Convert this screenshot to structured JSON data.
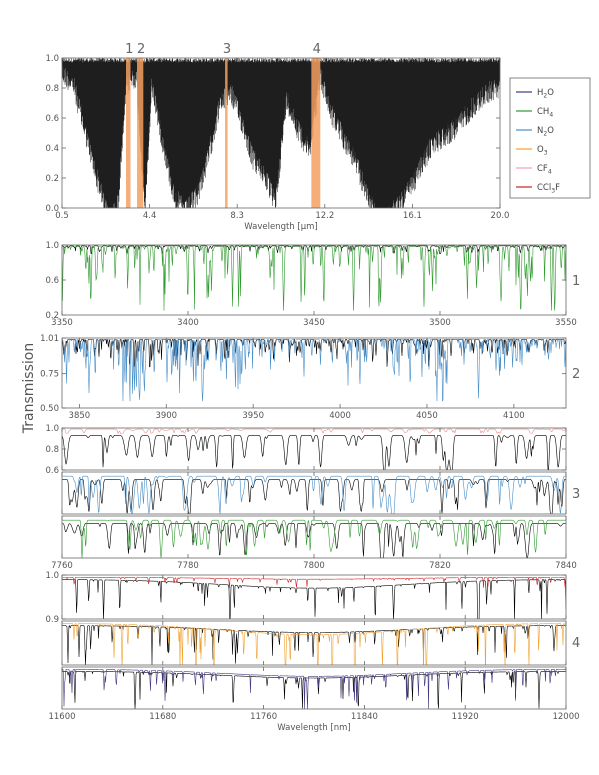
{
  "figure": {
    "ylabel": "Transmission"
  },
  "chart_data": [
    {
      "type": "line",
      "panel": "overview",
      "xlabel": "Wavelength [μm]",
      "xlim": [
        0.5,
        20.0
      ],
      "xticks": [
        "0.5",
        "4.4",
        "8.3",
        "12.2",
        "16.1",
        "20.0"
      ],
      "ylim": [
        0.0,
        1.0
      ],
      "yticks": [
        "0.0",
        "0.2",
        "0.4",
        "0.6",
        "0.8",
        "1.0"
      ],
      "highlight_bands": [
        {
          "label": "1",
          "x": [
            3.35,
            3.55
          ]
        },
        {
          "label": "2",
          "x": [
            3.84,
            4.12
          ]
        },
        {
          "label": "3",
          "x": [
            7.76,
            7.84
          ]
        },
        {
          "label": "4",
          "x": [
            11.6,
            12.0
          ]
        }
      ],
      "series": [
        {
          "color": "#000000",
          "x": [
            0.5,
            1.0,
            1.5,
            2.0,
            2.5,
            2.7,
            3.0,
            3.35,
            3.5,
            3.8,
            4.2,
            4.5,
            5.0,
            5.5,
            6.0,
            6.5,
            7.0,
            7.5,
            8.0,
            8.5,
            9.0,
            9.5,
            10.0,
            10.5,
            11.0,
            11.5,
            12.0,
            12.5,
            13.0,
            13.5,
            14.0,
            14.5,
            15.0,
            15.5,
            16.0,
            16.5,
            17.0,
            17.5,
            18.0,
            18.5,
            19.0,
            19.5,
            20.0
          ],
          "y": [
            0.97,
            0.9,
            0.6,
            0.3,
            0.05,
            0.0,
            0.1,
            0.85,
            0.92,
            0.95,
            0.05,
            0.9,
            0.5,
            0.15,
            0.05,
            0.15,
            0.4,
            0.75,
            0.85,
            0.65,
            0.4,
            0.3,
            0.1,
            0.8,
            0.6,
            0.45,
            0.95,
            0.7,
            0.55,
            0.4,
            0.2,
            0.0,
            0.0,
            0.1,
            0.2,
            0.35,
            0.5,
            0.55,
            0.6,
            0.7,
            0.78,
            0.85,
            0.88
          ]
        }
      ]
    },
    {
      "type": "line",
      "panel": "1",
      "xlim": [
        3350,
        3550
      ],
      "xticks": [
        "3350",
        "3400",
        "3450",
        "3500",
        "3550"
      ],
      "ylim": [
        0.2,
        1.0
      ],
      "yticks": [
        "0.2",
        "0.6",
        "1.0"
      ],
      "series": [
        {
          "color": "#2f9a2f",
          "continuum": 0.98,
          "min": 0.25
        },
        {
          "color": "#000000",
          "continuum": 0.99,
          "min": 0.9
        }
      ]
    },
    {
      "type": "line",
      "panel": "2",
      "xlim": [
        3840,
        4130
      ],
      "xticks": [
        "3850",
        "3900",
        "3950",
        "4000",
        "4050",
        "4100"
      ],
      "ylim": [
        0.5,
        1.01
      ],
      "yticks": [
        "0.50",
        "0.75",
        "1.01"
      ],
      "series": [
        {
          "color": "#4a8fc8",
          "continuum": 1.0,
          "min": 0.55
        },
        {
          "color": "#000000",
          "continuum": 1.0,
          "min": 0.8
        }
      ]
    },
    {
      "type": "line",
      "panel": "3",
      "xlim": [
        7760,
        7840
      ],
      "xticks": [
        "7760",
        "7780",
        "7800",
        "7820",
        "7840"
      ],
      "ylim": [
        0.6,
        1.0
      ],
      "yticks": [
        "0.6",
        "0.8",
        "1.0"
      ],
      "subplots": [
        {
          "series": [
            {
              "color": "#e89090",
              "continuum": 0.99,
              "min": 0.95
            },
            {
              "color": "#000000",
              "continuum": 0.93,
              "min": 0.6
            }
          ]
        },
        {
          "series": [
            {
              "color": "#4a8fc8",
              "continuum": 0.96,
              "min": 0.6
            },
            {
              "color": "#000000",
              "continuum": 0.93,
              "min": 0.6
            }
          ]
        },
        {
          "series": [
            {
              "color": "#2f9a2f",
              "continuum": 0.96,
              "min": 0.6
            },
            {
              "color": "#000000",
              "continuum": 0.93,
              "min": 0.6
            }
          ]
        }
      ]
    },
    {
      "type": "line",
      "panel": "4",
      "xlabel": "Wavelength [nm]",
      "xlim": [
        11600,
        12000
      ],
      "xticks": [
        "11600",
        "11680",
        "11760",
        "11840",
        "11920",
        "12000"
      ],
      "ylim": [
        0.9,
        1.0
      ],
      "yticks": [
        "0.9",
        "1.0"
      ],
      "subplots": [
        {
          "series": [
            {
              "color": "#cc2222",
              "continuum": 0.995,
              "min": 0.97
            },
            {
              "color": "#000000",
              "continuum": 0.99,
              "min": 0.88
            }
          ]
        },
        {
          "series": [
            {
              "color": "#f0a030",
              "continuum": 0.995,
              "min": 0.85
            },
            {
              "color": "#000000",
              "continuum": 0.99,
              "min": 0.9
            }
          ]
        },
        {
          "series": [
            {
              "color": "#403880",
              "continuum": 0.995,
              "min": 0.9
            },
            {
              "color": "#000000",
              "continuum": 0.99,
              "min": 0.9
            }
          ]
        }
      ]
    }
  ],
  "legend": {
    "placement": "right",
    "entries": [
      {
        "base": "H",
        "sub": "2",
        "tail": "O",
        "color": "#403880"
      },
      {
        "base": "CH",
        "sub": "4",
        "tail": "",
        "color": "#2f9a2f"
      },
      {
        "base": "N",
        "sub": "2",
        "tail": "O",
        "color": "#4a8fc8"
      },
      {
        "base": "O",
        "sub": "3",
        "tail": "",
        "color": "#f0a030"
      },
      {
        "base": "CF",
        "sub": "4",
        "tail": "",
        "color": "#f4a0b0"
      },
      {
        "base": "CCl",
        "sub": "3",
        "tail": "F",
        "color": "#cc2222"
      }
    ]
  },
  "colors": {
    "band_fill": "#f5a060",
    "axis": "#666666"
  }
}
